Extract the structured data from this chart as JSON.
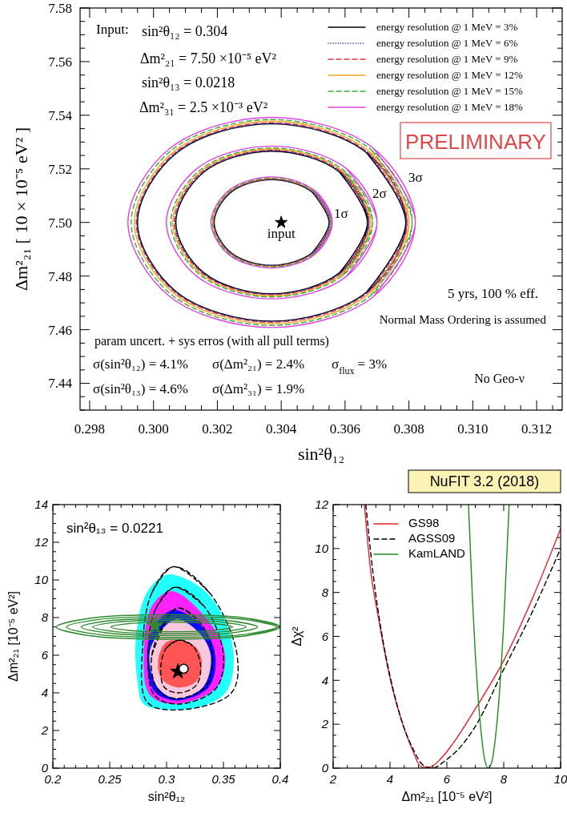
{
  "chart_data": [
    {
      "type": "line",
      "xlabel": "sin²θ₁₂",
      "ylabel": "Δm²₂₁ [ 10 × 10⁻⁵ eV² ]",
      "xlim": [
        0.2977,
        0.3128
      ],
      "ylim": [
        7.43,
        7.58
      ],
      "xticks": [
        0.298,
        {
          "value": 0.3,
          "label": "0.300"
        },
        0.302,
        0.304,
        0.306,
        0.308,
        {
          "value": 0.31,
          "label": "0.310"
        },
        0.312
      ],
      "yticks": [
        7.44,
        7.46,
        7.48,
        {
          "value": 7.5,
          "label": "7.50"
        },
        7.52,
        7.54,
        7.56,
        7.58
      ],
      "legend": "top right",
      "annotations": [
        "Input:",
        "sin²θ₁₂ = 0.304",
        "Δm²₂₁ = 7.50 ×10⁻⁵ eV²",
        "sin²θ₁₃ = 0.0218",
        "Δm²₃₁ = 2.5 ×10⁻³ eV²",
        "PRELIMINARY",
        "5 yrs, 100 % eff.",
        "Normal Mass Ordering is assumed",
        "param uncert. + sys erros (with all pull terms)",
        "σ(sin²θ₁₂) = 4.1%",
        "σ(Δm²₂₁) = 2.4%",
        "σ$_{flux}$ = 3%",
        "σ(sin²θ₁₃) = 4.6%",
        "σ(Δm²₃₁) = 1.9%",
        "No Geo-ν",
        "1σ",
        "2σ",
        "3σ"
      ],
      "series": [
        {
          "name": "energy resolution @ 1 MeV = 3%",
          "color": "#000000",
          "line_style": "solid",
          "x": [
            0.3055,
            0.30497,
            0.3037,
            0.30243,
            0.3019,
            0.30243,
            0.3037,
            0.30497,
            null,
            0.3067,
            0.30582,
            0.3037,
            0.30158,
            0.3007,
            0.30158,
            0.3037,
            0.30582,
            null,
            0.3079,
            0.30667,
            0.3037,
            0.30073,
            0.2995,
            0.30073,
            0.3037,
            0.30667
          ],
          "values": [
            7.5,
            7.5113,
            7.516,
            7.5113,
            7.5,
            7.4887,
            7.484,
            7.4887,
            null,
            7.5,
            7.5188,
            7.5266,
            7.5188,
            7.5,
            7.4812,
            7.4734,
            7.4812,
            null,
            7.5,
            7.526,
            7.5368,
            7.526,
            7.5,
            7.474,
            7.4632,
            7.474
          ]
        },
        {
          "name": "energy resolution @ 1 MeV = 6%",
          "color": "#1a1acc",
          "line_style": "dotted",
          "x": [
            0.30551,
            0.30498,
            0.3037,
            0.30242,
            0.30189,
            0.30242,
            0.3037,
            0.30498,
            null,
            0.30673,
            0.30584,
            0.3037,
            0.30156,
            0.30067,
            0.30156,
            0.3037,
            0.30584,
            null,
            0.30792,
            0.30668,
            0.3037,
            0.30072,
            0.29948,
            0.30072,
            0.3037,
            0.30668
          ],
          "values": [
            7.5,
            7.5114,
            7.5161,
            7.5114,
            7.5,
            7.4886,
            7.4839,
            7.4886,
            null,
            7.5,
            7.519,
            7.5268,
            7.519,
            7.5,
            7.481,
            7.4732,
            7.481,
            null,
            7.5,
            7.5262,
            7.537,
            7.5262,
            7.5,
            7.4738,
            7.463,
            7.4738
          ]
        },
        {
          "name": "energy resolution @ 1 MeV = 9%",
          "color": "#e8303a",
          "line_style": "dashed",
          "x": [
            0.30552,
            0.30499,
            0.3037,
            0.30241,
            0.30188,
            0.30241,
            0.3037,
            0.30499,
            null,
            0.30675,
            0.30586,
            0.3037,
            0.30154,
            0.30065,
            0.30154,
            0.3037,
            0.30586,
            null,
            0.30794,
            0.3067,
            0.3037,
            0.3007,
            0.29946,
            0.3007,
            0.3037,
            0.3067
          ],
          "values": [
            7.5,
            7.5115,
            7.5162,
            7.5115,
            7.5,
            7.4885,
            7.4838,
            7.4885,
            null,
            7.5,
            7.5191,
            7.527,
            7.5191,
            7.5,
            7.4809,
            7.473,
            7.4809,
            null,
            7.5,
            7.5263,
            7.5372,
            7.5263,
            7.5,
            7.4737,
            7.4628,
            7.4737
          ]
        },
        {
          "name": "energy resolution @ 1 MeV = 12%",
          "color": "#f5a623",
          "line_style": "solid",
          "x": [
            0.30554,
            0.305,
            0.3037,
            0.3024,
            0.30186,
            0.3024,
            0.3037,
            0.305,
            null,
            0.3068,
            0.30589,
            0.3037,
            0.30151,
            0.3006,
            0.30151,
            0.3037,
            0.30589,
            null,
            0.308,
            0.30674,
            0.3037,
            0.30066,
            0.2994,
            0.30066,
            0.3037,
            0.30674
          ],
          "values": [
            7.5,
            7.5116,
            7.5164,
            7.5116,
            7.5,
            7.4884,
            7.4836,
            7.4884,
            null,
            7.5,
            7.5194,
            7.5274,
            7.5194,
            7.5,
            7.4806,
            7.4726,
            7.4806,
            null,
            7.5,
            7.5267,
            7.5378,
            7.5267,
            7.5,
            7.4733,
            7.4622,
            7.4733
          ]
        },
        {
          "name": "energy resolution @ 1 MeV = 15%",
          "color": "#3aa83a",
          "line_style": "dashed",
          "x": [
            0.30556,
            0.30502,
            0.3037,
            0.30238,
            0.30184,
            0.30238,
            0.3037,
            0.30502,
            null,
            0.30686,
            0.30593,
            0.3037,
            0.30147,
            0.30054,
            0.30147,
            0.3037,
            0.30593,
            null,
            0.3081,
            0.30681,
            0.3037,
            0.30059,
            0.2993,
            0.30059,
            0.3037,
            0.30681
          ],
          "values": [
            7.5,
            7.5117,
            7.5166,
            7.5117,
            7.5,
            7.4883,
            7.4834,
            7.4883,
            null,
            7.5,
            7.5197,
            7.5278,
            7.5197,
            7.5,
            7.4803,
            7.4722,
            7.4803,
            null,
            7.5,
            7.5272,
            7.5384,
            7.5272,
            7.5,
            7.4728,
            7.4616,
            7.4728
          ]
        },
        {
          "name": "energy resolution @ 1 MeV = 18%",
          "color": "#e040e0",
          "line_style": "solid",
          "x": [
            0.3056,
            0.30504,
            0.3037,
            0.30236,
            0.3018,
            0.30236,
            0.3037,
            0.30504,
            null,
            0.307,
            0.30603,
            0.3037,
            0.30137,
            0.3004,
            0.30137,
            0.3037,
            0.30603,
            null,
            0.3082,
            0.30688,
            0.3037,
            0.30052,
            0.2992,
            0.30052,
            0.3037,
            0.30688
          ],
          "values": [
            7.5,
            7.512,
            7.517,
            7.512,
            7.5,
            7.488,
            7.483,
            7.488,
            null,
            7.5,
            7.5202,
            7.5285,
            7.5202,
            7.5,
            7.4798,
            7.4715,
            7.4798,
            null,
            7.5,
            7.5277,
            7.5392,
            7.5277,
            7.5,
            7.4723,
            7.4608,
            7.4723
          ]
        },
        {
          "type": "scatter",
          "name": "input",
          "color": "#000000",
          "marker": "star",
          "x": [
            0.304
          ],
          "values": [
            7.5
          ]
        }
      ]
    },
    {
      "type": "area",
      "xlabel": "sin²θ₁₂",
      "ylabel": "Δm²₂₁ [10⁻⁵ eV²]",
      "xlim": [
        0.2,
        0.4
      ],
      "ylim": [
        0,
        14
      ],
      "xticks": [
        0.2,
        0.25,
        0.3,
        0.35,
        0.4
      ],
      "yticks": [
        0,
        2,
        4,
        6,
        8,
        10,
        12,
        14
      ],
      "annotations": [
        "sin²θ₁₃ = 0.0221"
      ],
      "series": [
        {
          "color": "#22ffff",
          "x": [
            0.303,
            0.332,
            0.351,
            0.359,
            0.353,
            0.332,
            0.304,
            0.28,
            0.274,
            0.273,
            0.28,
            0.29
          ],
          "values": [
            10.3,
            9.5,
            7.9,
            5.9,
            4.1,
            3.3,
            3.1,
            3.4,
            4.8,
            6.9,
            9.0,
            9.9
          ]
        },
        {
          "color": "#ff22ff",
          "x": [
            0.304,
            0.33,
            0.351,
            0.344,
            0.306,
            0.285,
            0.28,
            0.287
          ],
          "values": [
            9.4,
            8.3,
            6.2,
            4.3,
            3.4,
            3.9,
            6.2,
            8.6
          ]
        },
        {
          "color": "#0a0aff",
          "x": [
            0.306,
            0.332,
            0.343,
            0.337,
            0.309,
            0.289,
            0.283,
            0.29
          ],
          "values": [
            8.4,
            7.5,
            5.9,
            4.3,
            3.6,
            4.1,
            6.2,
            7.6
          ]
        },
        {
          "color": "#f8c8dc",
          "x": [
            0.309,
            0.33,
            0.339,
            0.332,
            0.309,
            0.292,
            0.285,
            0.295
          ],
          "values": [
            7.9,
            7.1,
            5.9,
            4.3,
            3.7,
            4.3,
            6.1,
            7.3
          ]
        },
        {
          "color": "#ff5555",
          "x": [
            0.31,
            0.326,
            0.331,
            0.326,
            0.309,
            0.295,
            0.293,
            0.3
          ],
          "values": [
            6.8,
            6.4,
            5.6,
            4.6,
            4.3,
            4.8,
            5.9,
            6.7
          ]
        },
        {
          "type": "line",
          "color": "#000000",
          "line_style": "dashed",
          "x": [
            0.306,
            0.338,
            0.362,
            0.357,
            0.312,
            0.283,
            0.279,
            0.287,
            null,
            0.307,
            0.333,
            0.35,
            0.343,
            0.31,
            0.289,
            0.284,
            0.29,
            null,
            0.309,
            0.33,
            0.34,
            0.335,
            0.31,
            0.293,
            0.287,
            null,
            null,
            0.311,
            0.323,
            0.33,
            0.326,
            0.311,
            0.298,
            0.295,
            0.3
          ],
          "values": [
            10.7,
            9.3,
            6.0,
            4.0,
            3.1,
            3.5,
            6.5,
            9.3,
            null,
            9.6,
            8.6,
            6.0,
            4.2,
            3.4,
            3.9,
            6.2,
            8.4,
            null,
            8.5,
            7.7,
            6.0,
            4.4,
            3.7,
            4.1,
            6.0,
            null,
            null,
            6.8,
            6.5,
            5.4,
            4.4,
            4.0,
            4.3,
            5.4,
            6.4
          ]
        },
        {
          "type": "line",
          "color": "#2e8b2e",
          "line_style": "solid",
          "x": [
            0.4,
            0.371,
            0.3015,
            0.232,
            0.203,
            0.232,
            0.3015,
            0.371,
            null,
            0.397,
            0.37,
            0.3045,
            0.239,
            0.212,
            0.239,
            0.3045,
            0.37,
            null,
            0.38,
            0.357,
            0.3025,
            0.248,
            0.225,
            0.248,
            0.3025,
            0.357,
            null,
            0.37,
            0.35,
            0.3025,
            0.255,
            0.235,
            0.255,
            0.3025,
            0.35,
            null,
            0.358,
            0.342,
            0.3045,
            0.267,
            0.251,
            0.267,
            0.3045,
            0.342
          ],
          "values": [
            7.5,
            7.96,
            8.15,
            7.96,
            7.5,
            7.04,
            6.85,
            7.04,
            null,
            7.5,
            7.89,
            8.05,
            7.89,
            7.5,
            7.11,
            6.95,
            7.11,
            null,
            7.5,
            7.82,
            7.95,
            7.82,
            7.5,
            7.18,
            7.05,
            7.18,
            null,
            7.5,
            7.75,
            7.85,
            7.75,
            7.5,
            7.25,
            7.15,
            7.25,
            null,
            7.5,
            7.68,
            7.75,
            7.68,
            7.5,
            7.32,
            7.25,
            7.32
          ]
        },
        {
          "type": "scatter",
          "color": "#2e8b2e",
          "marker": "star",
          "x": [
            0.29
          ],
          "values": [
            7.55
          ]
        },
        {
          "type": "scatter",
          "color": "#000000",
          "marker": "star",
          "x": [
            0.31
          ],
          "values": [
            5.13
          ]
        },
        {
          "type": "scatter",
          "color": "#ffffff",
          "marker": "circle",
          "x": [
            0.315
          ],
          "values": [
            5.28
          ]
        }
      ]
    },
    {
      "type": "line",
      "title": "NuFIT 3.2 (2018)",
      "xlabel": "Δm²₂₁ [10⁻⁵ eV²]",
      "ylabel": "Δχ²",
      "xlim": [
        2,
        10
      ],
      "ylim": [
        0,
        12
      ],
      "xticks": [
        2,
        4,
        6,
        8,
        10
      ],
      "yticks": [
        0,
        2,
        4,
        6,
        8,
        10,
        12
      ],
      "legend": "top left",
      "series": [
        {
          "name": "GS98",
          "color": "#e8202a",
          "line_style": "solid",
          "x": [
            3.1,
            3.3,
            3.6,
            4.0,
            4.4,
            4.8,
            5.1,
            5.4,
            5.8,
            6.2,
            7.0,
            8.0,
            9.0,
            10.0
          ],
          "values": [
            12,
            9.2,
            6.8,
            4.1,
            2.2,
            0.8,
            0.05,
            0.05,
            0.45,
            1.1,
            2.7,
            4.9,
            7.7,
            10.9
          ]
        },
        {
          "name": "AGSS09",
          "color": "#000000",
          "line_style": "dashed",
          "x": [
            3.15,
            3.4,
            3.7,
            4.0,
            4.4,
            4.8,
            5.2,
            5.5,
            5.9,
            6.5,
            7.0,
            8.0,
            9.0,
            10.0
          ],
          "values": [
            12,
            8.9,
            6.2,
            4.2,
            2.2,
            0.9,
            0.1,
            0.0,
            0.3,
            1.0,
            1.9,
            4.5,
            7.1,
            10.0
          ]
        },
        {
          "name": "KamLAND",
          "color": "#1e8c1e",
          "line_style": "solid",
          "x": [
            6.76,
            6.9,
            7.0,
            7.1,
            7.2,
            7.3,
            7.46,
            7.6,
            7.7,
            7.8,
            7.9,
            8.0,
            8.19
          ],
          "values": [
            12,
            7.7,
            5.2,
            3.2,
            1.7,
            0.6,
            0,
            0.4,
            1.3,
            2.6,
            4.4,
            6.6,
            12
          ]
        }
      ]
    }
  ]
}
